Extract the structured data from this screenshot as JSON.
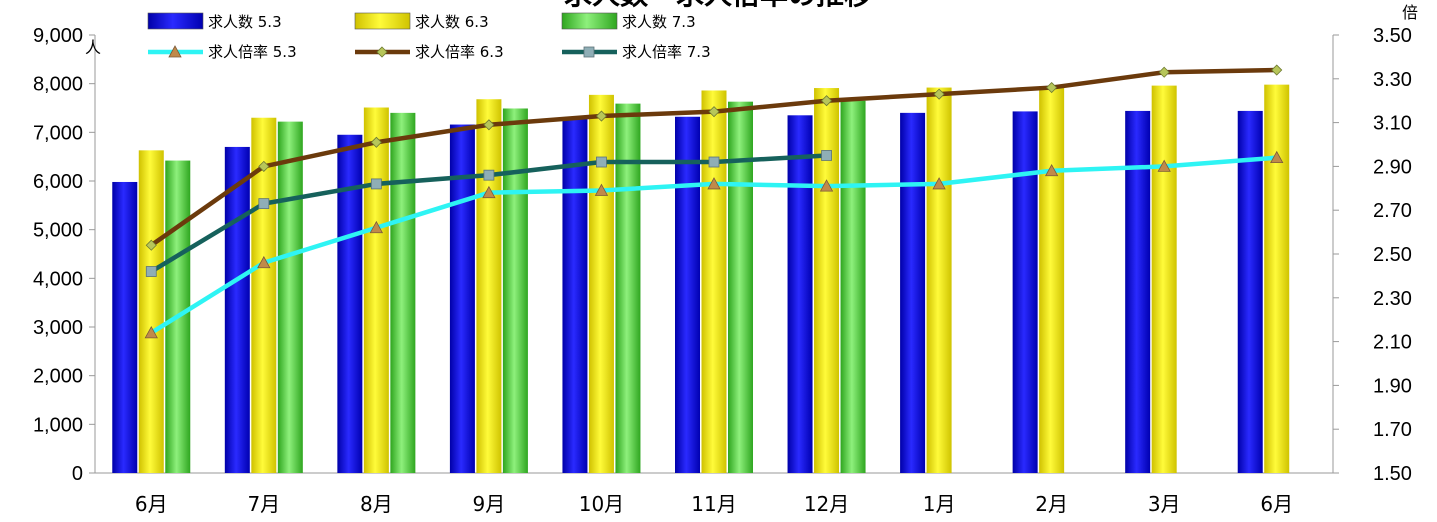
{
  "chart_data": {
    "type": "bar",
    "title": "求人数・求人倍率の推移",
    "categories": [
      "6月",
      "7月",
      "8月",
      "9月",
      "10月",
      "11月",
      "12月",
      "1月",
      "2月",
      "3月",
      "6月"
    ],
    "y_left": {
      "unit": "人",
      "min": 0,
      "max": 9000,
      "step": 1000,
      "tick_labels": [
        "0",
        "1,000",
        "2,000",
        "3,000",
        "4,000",
        "5,000",
        "6,000",
        "7,000",
        "8,000",
        "9,000"
      ]
    },
    "y_right": {
      "unit": "倍",
      "min": 1.5,
      "max": 3.5,
      "step": 0.2,
      "tick_labels": [
        "1.50",
        "1.70",
        "1.90",
        "2.10",
        "2.30",
        "2.50",
        "2.70",
        "2.90",
        "3.10",
        "3.30",
        "3.50"
      ]
    },
    "bar_series": [
      {
        "name": "求人数 5.3",
        "color": "#1a1ad6",
        "values": [
          5980,
          6700,
          6950,
          7160,
          7270,
          7320,
          7350,
          7400,
          7430,
          7440,
          7440
        ]
      },
      {
        "name": "求人数 6.3",
        "color": "#f2ea1a",
        "values": [
          6630,
          7300,
          7510,
          7680,
          7770,
          7860,
          7910,
          7920,
          7950,
          7960,
          7980
        ]
      },
      {
        "name": "求人数 7.3",
        "color": "#5fd24c",
        "values": [
          6420,
          7220,
          7400,
          7490,
          7590,
          7630,
          7650,
          null,
          null,
          null,
          null
        ]
      }
    ],
    "line_series": [
      {
        "name": "求人倍率 5.3",
        "color": "#2ef4f4",
        "marker": "triangle",
        "marker_color": "#c08a4a",
        "values": [
          2.14,
          2.46,
          2.62,
          2.78,
          2.79,
          2.82,
          2.81,
          2.82,
          2.88,
          2.9,
          2.94
        ]
      },
      {
        "name": "求人倍率 6.3",
        "color": "#6b3a0c",
        "marker": "diamond",
        "marker_color": "#b7c65a",
        "values": [
          2.54,
          2.9,
          3.01,
          3.09,
          3.13,
          3.15,
          3.2,
          3.23,
          3.26,
          3.33,
          3.34
        ]
      },
      {
        "name": "求人倍率 7.3",
        "color": "#16615c",
        "marker": "square",
        "marker_color": "#8faeb6",
        "values": [
          2.42,
          2.73,
          2.82,
          2.86,
          2.92,
          2.92,
          2.95,
          null,
          null,
          null,
          null
        ]
      }
    ],
    "grid": false,
    "legend_position": "top-left"
  }
}
